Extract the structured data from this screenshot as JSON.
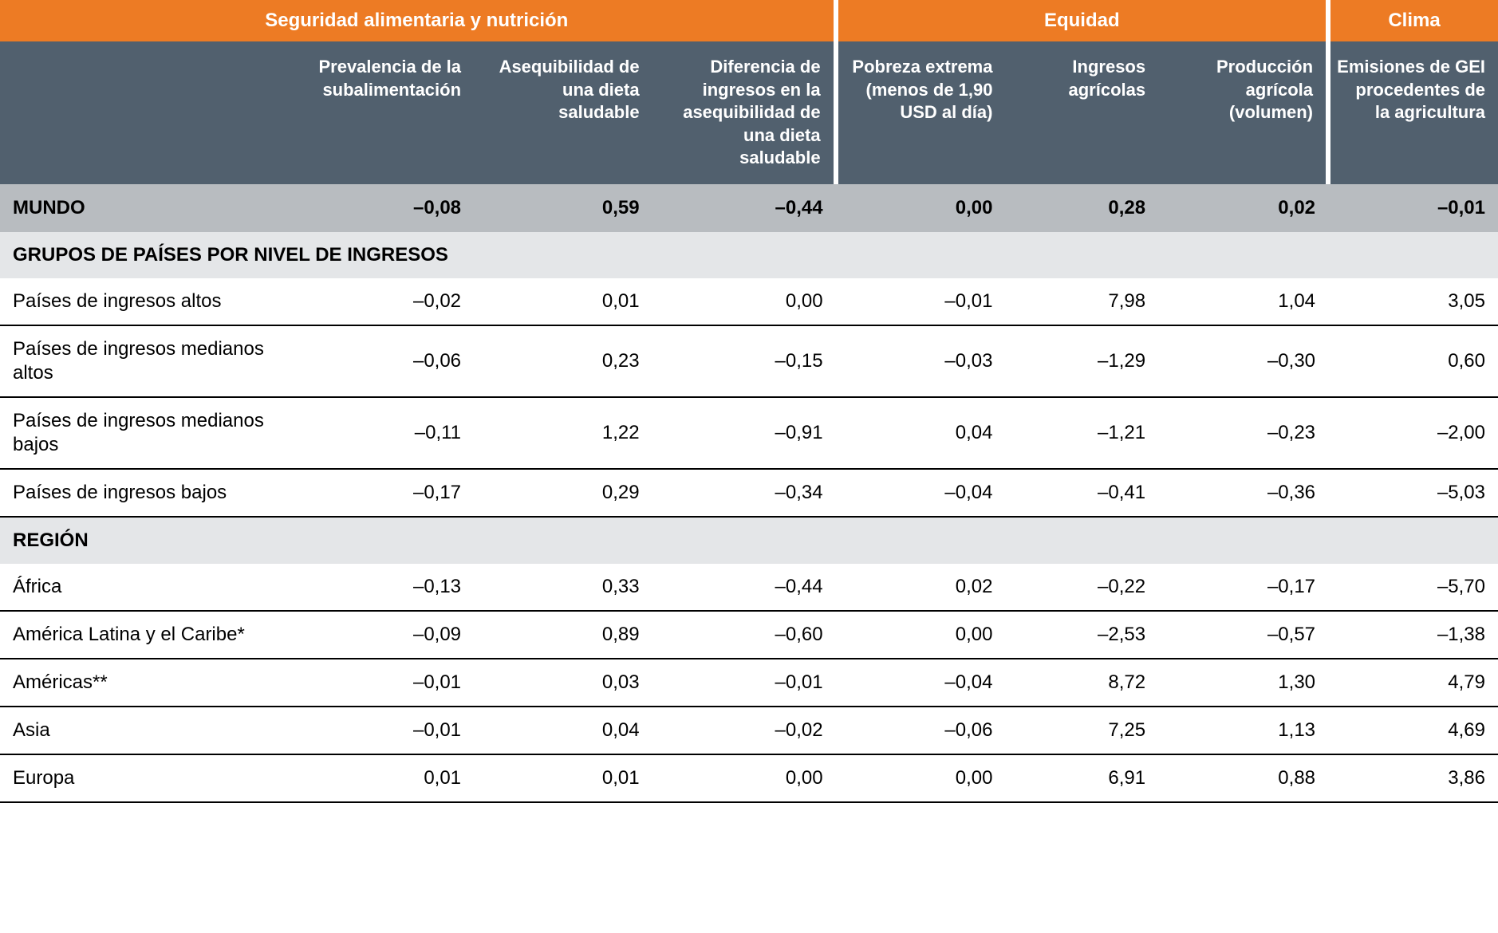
{
  "colors": {
    "orange": "#ed7b24",
    "slate": "#51606e",
    "grey_mundo": "#b8bcc0",
    "grey_section": "#e4e6e8",
    "white": "#ffffff",
    "black": "#000000"
  },
  "top_headers": {
    "group1": "Seguridad alimentaria y nutrición",
    "group2": "Equidad",
    "group3": "Clima"
  },
  "sub_headers": {
    "c1": "Prevalencia de la subalimentación",
    "c2": "Asequibilidad de una dieta saludable",
    "c3": "Diferencia de ingresos en la asequibilidad de una dieta saludable",
    "c4": "Pobreza extrema (menos de 1,90 USD al día)",
    "c5": "Ingresos agrícolas",
    "c6": "Producción agrícola (volumen)",
    "c7": "Emisiones de GEI procedentes de la agricultura"
  },
  "mundo": {
    "label": "MUNDO",
    "v1": "–0,08",
    "v2": "0,59",
    "v3": "–0,44",
    "v4": "0,00",
    "v5": "0,28",
    "v6": "0,02",
    "v7": "–0,01"
  },
  "section1_label": "GRUPOS DE PAÍSES POR NIVEL DE INGRESOS",
  "section2_label": "REGIÓN",
  "rows_income": [
    {
      "label": "Países de ingresos altos",
      "v1": "–0,02",
      "v2": "0,01",
      "v3": "0,00",
      "v4": "–0,01",
      "v5": "7,98",
      "v6": "1,04",
      "v7": "3,05"
    },
    {
      "label": "Países de ingresos medianos altos",
      "v1": "–0,06",
      "v2": "0,23",
      "v3": "–0,15",
      "v4": "–0,03",
      "v5": "–1,29",
      "v6": "–0,30",
      "v7": "0,60"
    },
    {
      "label": "Países de ingresos medianos bajos",
      "v1": "–0,11",
      "v2": "1,22",
      "v3": "–0,91",
      "v4": "0,04",
      "v5": "–1,21",
      "v6": "–0,23",
      "v7": "–2,00"
    },
    {
      "label": "Países de ingresos bajos",
      "v1": "–0,17",
      "v2": "0,29",
      "v3": "–0,34",
      "v4": "–0,04",
      "v5": "–0,41",
      "v6": "–0,36",
      "v7": "–5,03"
    }
  ],
  "rows_region": [
    {
      "label": "África",
      "v1": "–0,13",
      "v2": "0,33",
      "v3": "–0,44",
      "v4": "0,02",
      "v5": "–0,22",
      "v6": "–0,17",
      "v7": "–5,70"
    },
    {
      "label": "América Latina y el Caribe*",
      "v1": "–0,09",
      "v2": "0,89",
      "v3": "–0,60",
      "v4": "0,00",
      "v5": "–2,53",
      "v6": "–0,57",
      "v7": "–1,38"
    },
    {
      "label": "Américas**",
      "v1": "–0,01",
      "v2": "0,03",
      "v3": "–0,01",
      "v4": "–0,04",
      "v5": "8,72",
      "v6": "1,30",
      "v7": "4,79"
    },
    {
      "label": "Asia",
      "v1": "–0,01",
      "v2": "0,04",
      "v3": "–0,02",
      "v4": "–0,06",
      "v5": "7,25",
      "v6": "1,13",
      "v7": "4,69"
    },
    {
      "label": "Europa",
      "v1": "0,01",
      "v2": "0,01",
      "v3": "0,00",
      "v4": "0,00",
      "v5": "6,91",
      "v6": "0,88",
      "v7": "3,86"
    }
  ]
}
